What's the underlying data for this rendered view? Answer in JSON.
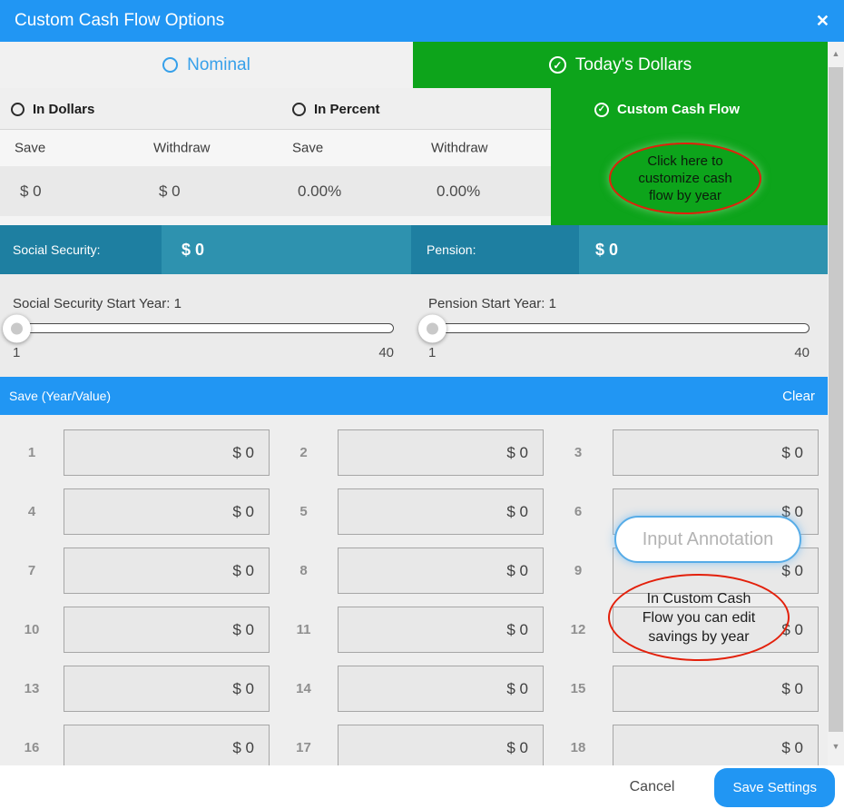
{
  "modal": {
    "title": "Custom Cash Flow Options",
    "close_icon": "✕"
  },
  "tabs": {
    "nominal": "Nominal",
    "todays_dollars": "Today's Dollars"
  },
  "subtabs": {
    "in_dollars": "In Dollars",
    "in_percent": "In Percent",
    "custom_cash_flow": "Custom Cash Flow"
  },
  "dollars_section": {
    "save_header": "Save",
    "withdraw_header": "Withdraw",
    "save_value": "$ 0",
    "withdraw_value": "$ 0"
  },
  "percent_section": {
    "save_header": "Save",
    "withdraw_header": "Withdraw",
    "save_value": "0.00%",
    "withdraw_value": "0.00%"
  },
  "green_annotation": {
    "line1": "Click here to",
    "line2": "customize cash",
    "line3": "flow by year"
  },
  "income": {
    "social_security_label": "Social Security:",
    "social_security_value": "$ 0",
    "pension_label": "Pension:",
    "pension_value": "$ 0"
  },
  "sliders": {
    "social_security": {
      "label": "Social Security Start Year: 1",
      "min": "1",
      "max": "40"
    },
    "pension": {
      "label": "Pension Start Year: 1",
      "min": "1",
      "max": "40"
    }
  },
  "save_section": {
    "title": "Save (Year/Value)",
    "clear_label": "Clear"
  },
  "grid": {
    "rows": [
      {
        "num": "1",
        "value": "$ 0"
      },
      {
        "num": "2",
        "value": "$ 0"
      },
      {
        "num": "3",
        "value": "$ 0"
      },
      {
        "num": "4",
        "value": "$ 0"
      },
      {
        "num": "5",
        "value": "$ 0"
      },
      {
        "num": "6",
        "value": "$ 0"
      },
      {
        "num": "7",
        "value": "$ 0"
      },
      {
        "num": "8",
        "value": "$ 0"
      },
      {
        "num": "9",
        "value": "$ 0"
      },
      {
        "num": "10",
        "value": "$ 0"
      },
      {
        "num": "11",
        "value": "$ 0"
      },
      {
        "num": "12",
        "value": "$ 0"
      },
      {
        "num": "13",
        "value": "$ 0"
      },
      {
        "num": "14",
        "value": "$ 0"
      },
      {
        "num": "15",
        "value": "$ 0"
      },
      {
        "num": "16",
        "value": "$ 0"
      },
      {
        "num": "17",
        "value": "$ 0"
      },
      {
        "num": "18",
        "value": "$ 0"
      }
    ]
  },
  "overlays": {
    "input_annotation_label": "Input Annotation",
    "edit_annotation": {
      "line1": "In Custom Cash",
      "line2": "Flow you can edit",
      "line3": "savings by year"
    }
  },
  "footer": {
    "cancel_label": "Cancel",
    "save_label": "Save Settings"
  },
  "icons": {
    "check": "✓",
    "scroll_up": "▲",
    "scroll_down": "▼"
  },
  "colors": {
    "primary_blue": "#2196f3",
    "active_green": "#0da41b",
    "teal_dark": "#1e7fa1",
    "teal_light": "#2e92af",
    "annotation_red": "#e3200b"
  }
}
